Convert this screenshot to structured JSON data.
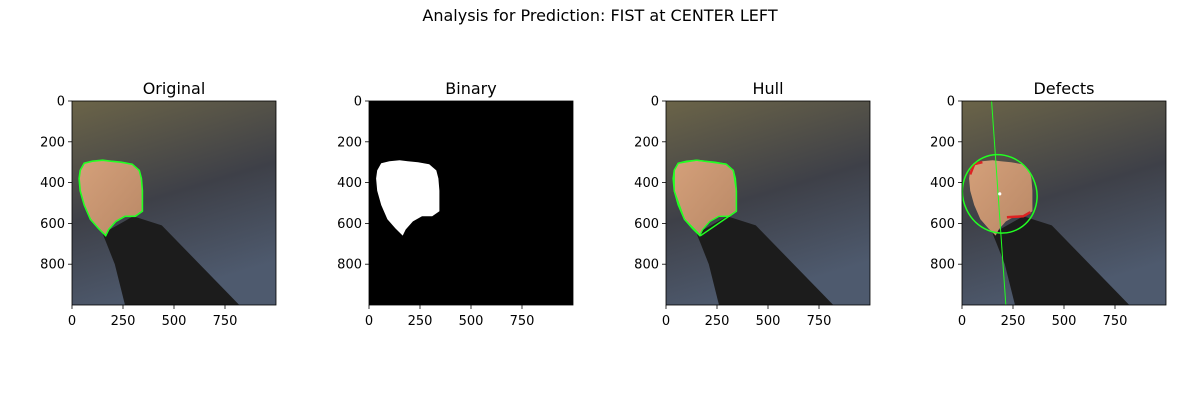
{
  "figure": {
    "title": "Analysis for Prediction: FIST at CENTER LEFT"
  },
  "chart_data": [
    {
      "type": "image",
      "title": "Original",
      "xlim": [
        0,
        1000
      ],
      "ylim": [
        1000,
        0
      ],
      "xticks": [
        "0",
        "250",
        "500",
        "750"
      ],
      "yticks": [
        "0",
        "200",
        "400",
        "600",
        "800"
      ],
      "xtick_values": [
        0,
        250,
        500,
        750
      ],
      "ytick_values": [
        0,
        200,
        400,
        600,
        800
      ],
      "overlay": "contour",
      "overlay_color": "#22ff22"
    },
    {
      "type": "image",
      "title": "Binary",
      "xlim": [
        0,
        1000
      ],
      "ylim": [
        1000,
        0
      ],
      "xticks": [
        "0",
        "250",
        "500",
        "750"
      ],
      "yticks": [
        "0",
        "200",
        "400",
        "600",
        "800"
      ],
      "xtick_values": [
        0,
        250,
        500,
        750
      ],
      "ytick_values": [
        0,
        200,
        400,
        600,
        800
      ],
      "overlay": "mask"
    },
    {
      "type": "image",
      "title": "Hull",
      "xlim": [
        0,
        1000
      ],
      "ylim": [
        1000,
        0
      ],
      "xticks": [
        "0",
        "250",
        "500",
        "750"
      ],
      "yticks": [
        "0",
        "200",
        "400",
        "600",
        "800"
      ],
      "xtick_values": [
        0,
        250,
        500,
        750
      ],
      "ytick_values": [
        0,
        200,
        400,
        600,
        800
      ],
      "overlay": "convex-hull",
      "overlay_color": "#22ff22"
    },
    {
      "type": "image",
      "title": "Defects",
      "xlim": [
        0,
        1000
      ],
      "ylim": [
        1000,
        0
      ],
      "xticks": [
        "0",
        "250",
        "500",
        "750"
      ],
      "yticks": [
        "0",
        "200",
        "400",
        "600",
        "800"
      ],
      "xtick_values": [
        0,
        250,
        500,
        750
      ],
      "ytick_values": [
        0,
        200,
        400,
        600,
        800
      ],
      "overlay": "ellipse-and-axis",
      "overlay_color": "#22ff22",
      "defect_color": "#dd2222"
    }
  ],
  "colors": {
    "background_top": "#6b6448",
    "background_bottom": "#4a5566",
    "skin": "#c8946e",
    "sleeve": "#1c1c1c",
    "mask_fg": "#ffffff",
    "mask_bg": "#000000"
  }
}
